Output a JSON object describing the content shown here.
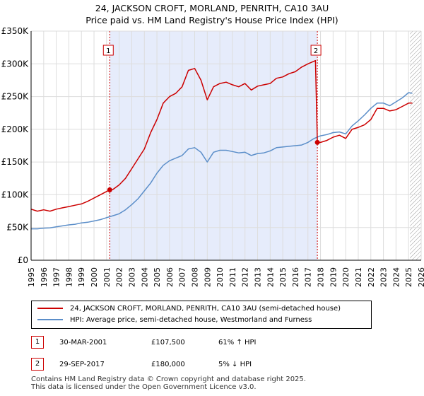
{
  "chart_data": {
    "type": "line",
    "title": "24, JACKSON CROFT, MORLAND, PENRITH, CA10 3AU",
    "subtitle": "Price paid vs. HM Land Registry's House Price Index (HPI)",
    "xlim": [
      1995,
      2026
    ],
    "ylim": [
      0,
      350000
    ],
    "x_ticks": [
      1995,
      1996,
      1997,
      1998,
      1999,
      2000,
      2001,
      2002,
      2003,
      2004,
      2005,
      2006,
      2007,
      2008,
      2009,
      2010,
      2011,
      2012,
      2013,
      2014,
      2015,
      2016,
      2017,
      2018,
      2019,
      2020,
      2021,
      2022,
      2023,
      2024,
      2025,
      2026
    ],
    "y_ticks": [
      {
        "value": 0,
        "label": "£0"
      },
      {
        "value": 50000,
        "label": "£50K"
      },
      {
        "value": 100000,
        "label": "£100K"
      },
      {
        "value": 150000,
        "label": "£150K"
      },
      {
        "value": 200000,
        "label": "£200K"
      },
      {
        "value": 250000,
        "label": "£250K"
      },
      {
        "value": 300000,
        "label": "£300K"
      },
      {
        "value": 350000,
        "label": "£350K"
      }
    ],
    "shaded_range": [
      2001.25,
      2017.75
    ],
    "forecast_from": 2025.1,
    "series": [
      {
        "name": "24, JACKSON CROFT, MORLAND, PENRITH, CA10 3AU (semi-detached house)",
        "color": "#cc0000",
        "points": [
          [
            1995.0,
            78000
          ],
          [
            1995.5,
            75000
          ],
          [
            1996.0,
            77000
          ],
          [
            1996.5,
            75000
          ],
          [
            1997.0,
            78000
          ],
          [
            1997.5,
            80000
          ],
          [
            1998.0,
            82000
          ],
          [
            1998.5,
            84000
          ],
          [
            1999.0,
            86000
          ],
          [
            1999.5,
            90000
          ],
          [
            2000.0,
            95000
          ],
          [
            2000.5,
            100000
          ],
          [
            2001.0,
            105000
          ],
          [
            2001.25,
            107500
          ],
          [
            2001.5,
            108000
          ],
          [
            2002.0,
            115000
          ],
          [
            2002.5,
            125000
          ],
          [
            2003.0,
            140000
          ],
          [
            2003.5,
            155000
          ],
          [
            2004.0,
            170000
          ],
          [
            2004.5,
            195000
          ],
          [
            2005.0,
            215000
          ],
          [
            2005.5,
            240000
          ],
          [
            2006.0,
            250000
          ],
          [
            2006.5,
            255000
          ],
          [
            2007.0,
            265000
          ],
          [
            2007.5,
            290000
          ],
          [
            2008.0,
            293000
          ],
          [
            2008.5,
            275000
          ],
          [
            2009.0,
            245000
          ],
          [
            2009.5,
            265000
          ],
          [
            2010.0,
            270000
          ],
          [
            2010.5,
            272000
          ],
          [
            2011.0,
            268000
          ],
          [
            2011.5,
            265000
          ],
          [
            2012.0,
            270000
          ],
          [
            2012.5,
            260000
          ],
          [
            2013.0,
            266000
          ],
          [
            2013.5,
            268000
          ],
          [
            2014.0,
            270000
          ],
          [
            2014.5,
            278000
          ],
          [
            2015.0,
            280000
          ],
          [
            2015.5,
            285000
          ],
          [
            2016.0,
            288000
          ],
          [
            2016.5,
            295000
          ],
          [
            2017.0,
            300000
          ],
          [
            2017.6,
            305000
          ],
          [
            2017.75,
            180000
          ],
          [
            2018.0,
            180000
          ],
          [
            2018.5,
            183000
          ],
          [
            2019.0,
            188000
          ],
          [
            2019.5,
            191000
          ],
          [
            2020.0,
            186000
          ],
          [
            2020.5,
            200000
          ],
          [
            2021.0,
            203000
          ],
          [
            2021.5,
            207000
          ],
          [
            2022.0,
            215000
          ],
          [
            2022.5,
            232000
          ],
          [
            2023.0,
            232000
          ],
          [
            2023.5,
            228000
          ],
          [
            2024.0,
            230000
          ],
          [
            2024.5,
            235000
          ],
          [
            2025.0,
            240000
          ],
          [
            2025.3,
            240000
          ]
        ]
      },
      {
        "name": "HPI: Average price, semi-detached house, Westmorland and Furness",
        "color": "#5b8ec9",
        "points": [
          [
            1995.0,
            48000
          ],
          [
            1995.5,
            48000
          ],
          [
            1996.0,
            49000
          ],
          [
            1996.5,
            49500
          ],
          [
            1997.0,
            51000
          ],
          [
            1997.5,
            52500
          ],
          [
            1998.0,
            54000
          ],
          [
            1998.5,
            55000
          ],
          [
            1999.0,
            57000
          ],
          [
            1999.5,
            58000
          ],
          [
            2000.0,
            60000
          ],
          [
            2000.5,
            62000
          ],
          [
            2001.0,
            65000
          ],
          [
            2001.5,
            68000
          ],
          [
            2002.0,
            71000
          ],
          [
            2002.5,
            77000
          ],
          [
            2003.0,
            85000
          ],
          [
            2003.5,
            94000
          ],
          [
            2004.0,
            106000
          ],
          [
            2004.5,
            118000
          ],
          [
            2005.0,
            133000
          ],
          [
            2005.5,
            145000
          ],
          [
            2006.0,
            152000
          ],
          [
            2006.5,
            156000
          ],
          [
            2007.0,
            160000
          ],
          [
            2007.5,
            170000
          ],
          [
            2008.0,
            172000
          ],
          [
            2008.5,
            165000
          ],
          [
            2009.0,
            150000
          ],
          [
            2009.5,
            165000
          ],
          [
            2010.0,
            168000
          ],
          [
            2010.5,
            168000
          ],
          [
            2011.0,
            166000
          ],
          [
            2011.5,
            164000
          ],
          [
            2012.0,
            165000
          ],
          [
            2012.5,
            160000
          ],
          [
            2013.0,
            163000
          ],
          [
            2013.5,
            164000
          ],
          [
            2014.0,
            167000
          ],
          [
            2014.5,
            172000
          ],
          [
            2015.0,
            173000
          ],
          [
            2015.5,
            174000
          ],
          [
            2016.0,
            175000
          ],
          [
            2016.5,
            176000
          ],
          [
            2017.0,
            180000
          ],
          [
            2017.5,
            186000
          ],
          [
            2018.0,
            190000
          ],
          [
            2018.5,
            192000
          ],
          [
            2019.0,
            195000
          ],
          [
            2019.5,
            196000
          ],
          [
            2020.0,
            193000
          ],
          [
            2020.5,
            205000
          ],
          [
            2021.0,
            213000
          ],
          [
            2021.5,
            222000
          ],
          [
            2022.0,
            232000
          ],
          [
            2022.5,
            240000
          ],
          [
            2023.0,
            240000
          ],
          [
            2023.5,
            236000
          ],
          [
            2024.0,
            242000
          ],
          [
            2024.5,
            248000
          ],
          [
            2025.0,
            256000
          ],
          [
            2025.3,
            255000
          ]
        ]
      }
    ],
    "markers": [
      {
        "label": "1",
        "x": 2001.25,
        "y": 107500
      },
      {
        "label": "2",
        "x": 2017.75,
        "y": 180000
      }
    ]
  },
  "legend": {
    "property_label": "24, JACKSON CROFT, MORLAND, PENRITH, CA10 3AU (semi-detached house)",
    "hpi_label": "HPI: Average price, semi-detached house, Westmorland and Furness"
  },
  "transactions": [
    {
      "num": "1",
      "date": "30-MAR-2001",
      "price": "£107,500",
      "hpi": "61% ↑ HPI"
    },
    {
      "num": "2",
      "date": "29-SEP-2017",
      "price": "£180,000",
      "hpi": "5% ↓ HPI"
    }
  ],
  "footer": {
    "line1": "Contains HM Land Registry data © Crown copyright and database right 2025.",
    "line2": "This data is licensed under the Open Government Licence v3.0."
  }
}
